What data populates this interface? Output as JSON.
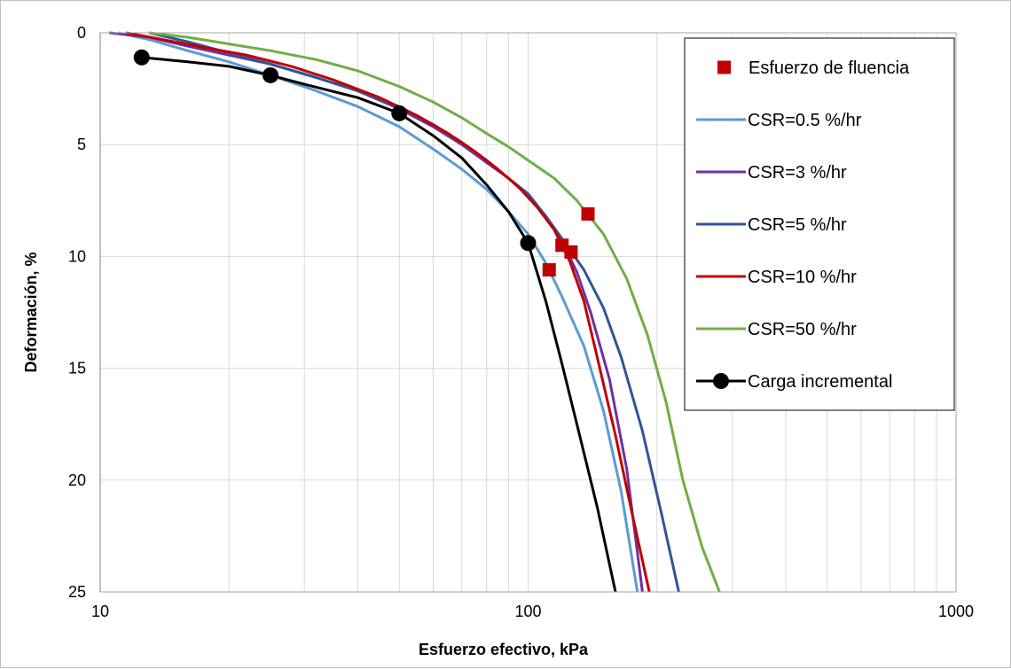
{
  "chart_data": {
    "type": "line",
    "xlabel": "Esfuerzo efectivo, kPa",
    "ylabel": "Deformación,  %",
    "xscale": "log",
    "xlim": [
      10,
      1000
    ],
    "ylim": [
      0,
      25
    ],
    "y_inverted": true,
    "grid": true,
    "legend_position": "top-right",
    "x_ticks": [
      10,
      100,
      1000
    ],
    "x_tick_labels": [
      "10",
      "100",
      "1000"
    ],
    "y_ticks": [
      0,
      5,
      10,
      15,
      20,
      25
    ],
    "y_tick_labels": [
      "0",
      "5",
      "10",
      "15",
      "20",
      "25"
    ],
    "series": [
      {
        "name": "Esfuerzo de fluencia",
        "kind": "markers",
        "marker": "square",
        "color": "#c00000",
        "points": [
          [
            112,
            10.6
          ],
          [
            120,
            9.5
          ],
          [
            126,
            9.8
          ],
          [
            138,
            8.1
          ]
        ]
      },
      {
        "name": "CSR=0.5 %/hr",
        "kind": "line",
        "color": "#5b9bd5",
        "points": [
          [
            11,
            0
          ],
          [
            13,
            0.3
          ],
          [
            16,
            0.8
          ],
          [
            20,
            1.3
          ],
          [
            25,
            1.9
          ],
          [
            32,
            2.6
          ],
          [
            40,
            3.3
          ],
          [
            50,
            4.2
          ],
          [
            60,
            5.2
          ],
          [
            70,
            6.1
          ],
          [
            80,
            7.0
          ],
          [
            90,
            8.0
          ],
          [
            100,
            9.0
          ],
          [
            110,
            10.3
          ],
          [
            120,
            11.8
          ],
          [
            135,
            14.0
          ],
          [
            150,
            16.9
          ],
          [
            165,
            20.5
          ],
          [
            180,
            25.0
          ]
        ]
      },
      {
        "name": "CSR=3 %/hr",
        "kind": "line",
        "color": "#7030a0",
        "points": [
          [
            10.5,
            0
          ],
          [
            13,
            0.2
          ],
          [
            16,
            0.6
          ],
          [
            20,
            1.0
          ],
          [
            25,
            1.4
          ],
          [
            32,
            2.0
          ],
          [
            40,
            2.6
          ],
          [
            50,
            3.4
          ],
          [
            60,
            4.2
          ],
          [
            70,
            5.0
          ],
          [
            80,
            5.8
          ],
          [
            90,
            6.5
          ],
          [
            100,
            7.3
          ],
          [
            110,
            8.2
          ],
          [
            120,
            9.3
          ],
          [
            130,
            10.7
          ],
          [
            140,
            12.5
          ],
          [
            155,
            15.5
          ],
          [
            170,
            19.5
          ],
          [
            185,
            25.0
          ]
        ]
      },
      {
        "name": "CSR=5 %/hr",
        "kind": "line",
        "color": "#2f5597",
        "points": [
          [
            13,
            0
          ],
          [
            16,
            0.4
          ],
          [
            20,
            0.9
          ],
          [
            25,
            1.4
          ],
          [
            32,
            2.0
          ],
          [
            40,
            2.6
          ],
          [
            50,
            3.3
          ],
          [
            60,
            4.1
          ],
          [
            70,
            4.9
          ],
          [
            80,
            5.7
          ],
          [
            90,
            6.5
          ],
          [
            100,
            7.2
          ],
          [
            110,
            8.2
          ],
          [
            120,
            9.2
          ],
          [
            135,
            10.6
          ],
          [
            150,
            12.3
          ],
          [
            165,
            14.5
          ],
          [
            185,
            17.8
          ],
          [
            205,
            21.5
          ],
          [
            225,
            25.0
          ]
        ]
      },
      {
        "name": "CSR=10 %/hr",
        "kind": "line",
        "color": "#c00000",
        "points": [
          [
            11.5,
            0
          ],
          [
            14,
            0.3
          ],
          [
            18,
            0.7
          ],
          [
            22,
            1.0
          ],
          [
            28,
            1.5
          ],
          [
            35,
            2.1
          ],
          [
            45,
            2.9
          ],
          [
            55,
            3.7
          ],
          [
            65,
            4.5
          ],
          [
            75,
            5.3
          ],
          [
            85,
            6.1
          ],
          [
            95,
            6.9
          ],
          [
            105,
            7.8
          ],
          [
            115,
            8.8
          ],
          [
            125,
            10.2
          ],
          [
            135,
            12.0
          ],
          [
            145,
            14.5
          ],
          [
            160,
            18.0
          ],
          [
            175,
            21.5
          ],
          [
            192,
            25.0
          ]
        ]
      },
      {
        "name": "CSR=50 %/hr",
        "kind": "line",
        "color": "#70ad47",
        "points": [
          [
            13,
            0
          ],
          [
            16,
            0.2
          ],
          [
            20,
            0.5
          ],
          [
            25,
            0.8
          ],
          [
            32,
            1.2
          ],
          [
            40,
            1.7
          ],
          [
            50,
            2.4
          ],
          [
            60,
            3.1
          ],
          [
            70,
            3.8
          ],
          [
            80,
            4.5
          ],
          [
            90,
            5.1
          ],
          [
            100,
            5.7
          ],
          [
            115,
            6.5
          ],
          [
            130,
            7.5
          ],
          [
            150,
            9.0
          ],
          [
            170,
            11.0
          ],
          [
            190,
            13.5
          ],
          [
            210,
            16.5
          ],
          [
            230,
            20.0
          ],
          [
            255,
            23.0
          ],
          [
            280,
            25.0
          ]
        ]
      },
      {
        "name": "Carga incremental",
        "kind": "line-markers",
        "marker": "circle",
        "color": "#000000",
        "points": [
          [
            12.5,
            1.1
          ],
          [
            25,
            1.9
          ],
          [
            50,
            3.6
          ],
          [
            100,
            9.4
          ],
          [
            160,
            25.0
          ]
        ],
        "curve": [
          [
            12.5,
            1.1
          ],
          [
            16,
            1.3
          ],
          [
            20,
            1.5
          ],
          [
            25,
            1.9
          ],
          [
            30,
            2.3
          ],
          [
            40,
            2.9
          ],
          [
            50,
            3.6
          ],
          [
            60,
            4.6
          ],
          [
            70,
            5.6
          ],
          [
            80,
            6.8
          ],
          [
            90,
            8.0
          ],
          [
            100,
            9.4
          ],
          [
            110,
            12.0
          ],
          [
            120,
            14.8
          ],
          [
            130,
            17.5
          ],
          [
            145,
            21.2
          ],
          [
            160,
            25.0
          ]
        ],
        "marker_points": [
          [
            12.5,
            1.1
          ],
          [
            25,
            1.9
          ],
          [
            50,
            3.6
          ],
          [
            100,
            9.4
          ]
        ]
      }
    ]
  }
}
